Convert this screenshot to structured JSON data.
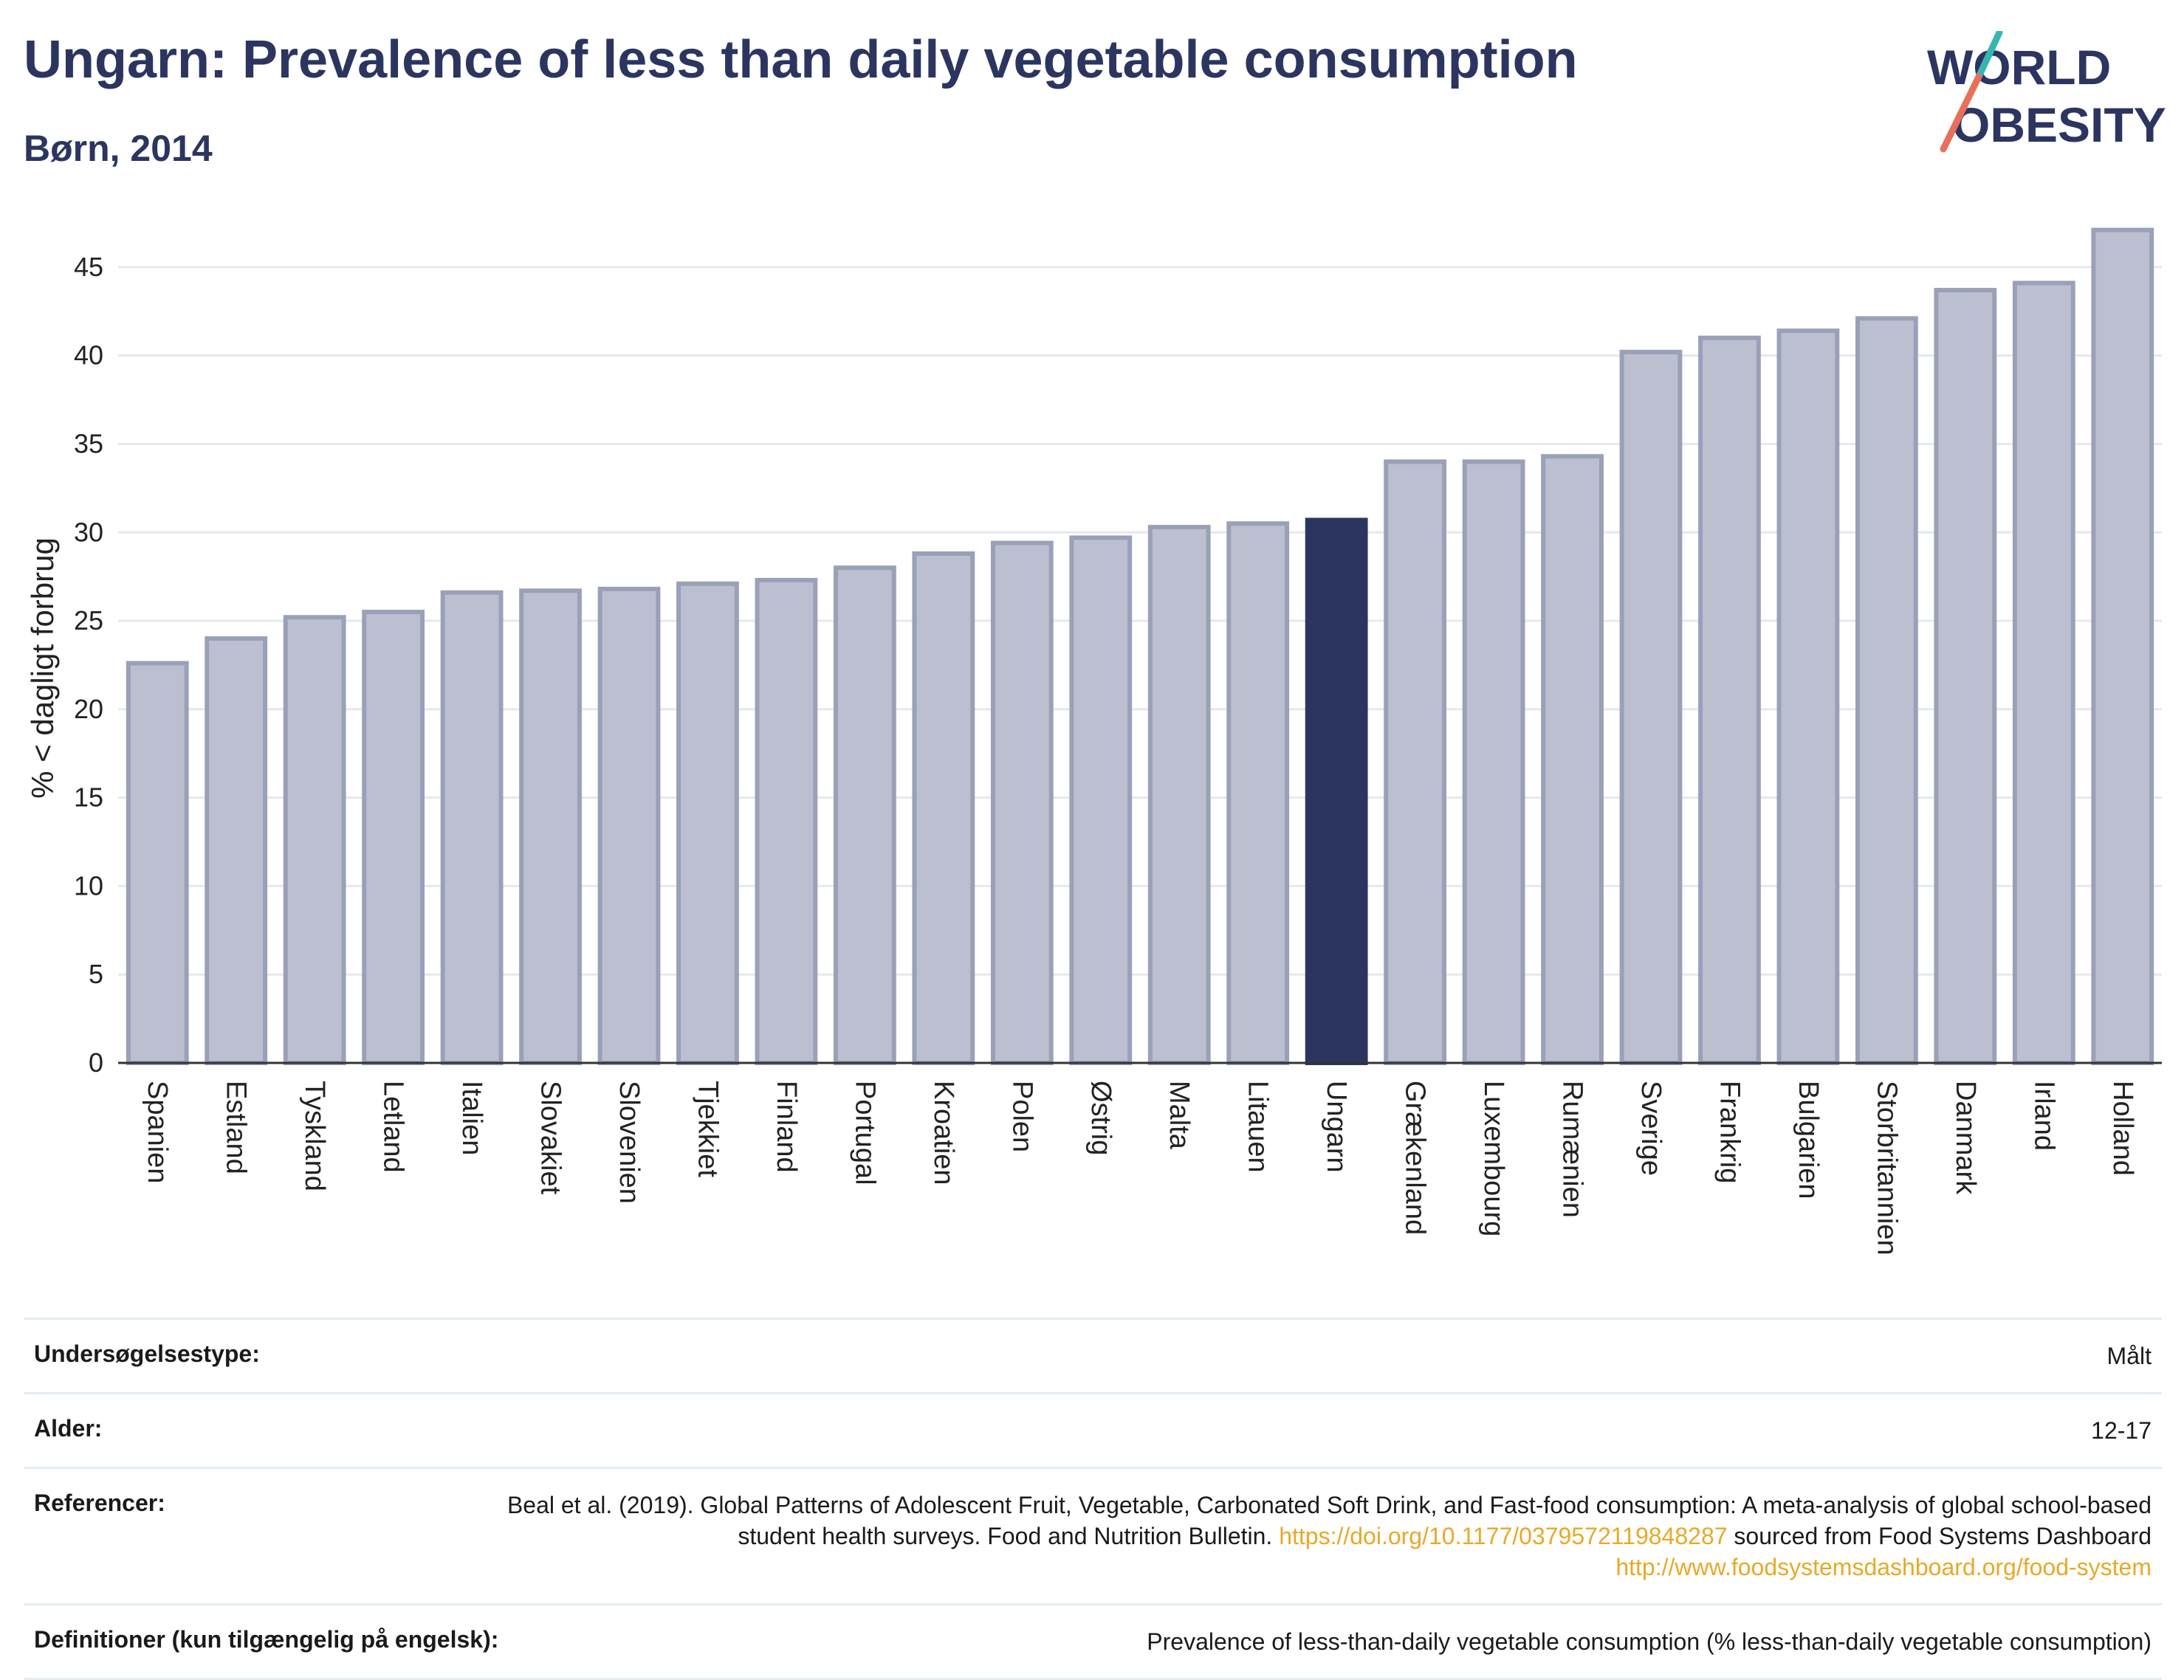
{
  "header": {
    "title": "Ungarn: Prevalence of less than daily vegetable consumption",
    "subtitle": "Børn, 2014"
  },
  "logo": {
    "line1": "WORLD",
    "line2": "OBESITY",
    "colors": {
      "text": "#2b3560",
      "slash_teal": "#37b6b0",
      "slash_coral": "#e8705a"
    }
  },
  "chart_data": {
    "type": "bar",
    "ylabel": "% < dagligt forbrug",
    "xlabel": "",
    "ylim": [
      0,
      48
    ],
    "yticks": [
      0,
      5,
      10,
      15,
      20,
      25,
      30,
      35,
      40,
      45
    ],
    "grid": true,
    "highlight": "Ungarn",
    "colors": {
      "bar": "#bcbfcf",
      "bar_edge": "#9aa0b8",
      "highlight": "#2b3560",
      "grid": "#e6e8ef"
    },
    "categories": [
      "Spanien",
      "Estland",
      "Tyskland",
      "Letland",
      "Italien",
      "Slovakiet",
      "Slovenien",
      "Tjekkiet",
      "Finland",
      "Portugal",
      "Kroatien",
      "Polen",
      "Østrig",
      "Malta",
      "Litauen",
      "Ungarn",
      "Grækenland",
      "Luxembourg",
      "Rumænien",
      "Sverige",
      "Frankrig",
      "Bulgarien",
      "Storbritannien",
      "Danmark",
      "Irland",
      "Holland"
    ],
    "values": [
      22.6,
      24.0,
      25.2,
      25.5,
      26.6,
      26.7,
      26.8,
      27.1,
      27.3,
      28.0,
      28.8,
      29.4,
      29.7,
      30.3,
      30.5,
      30.7,
      34.0,
      34.0,
      34.3,
      40.2,
      41.0,
      41.4,
      42.1,
      43.7,
      44.1,
      47.1
    ]
  },
  "info": {
    "survey_type": {
      "label": "Undersøgelsestype:",
      "value": "Målt"
    },
    "age": {
      "label": "Alder:",
      "value": "12-17"
    },
    "references": {
      "label": "Referencer:",
      "text1": "Beal et al. (2019). Global Patterns of Adolescent Fruit, Vegetable, Carbonated Soft Drink, and Fast-food consumption: A meta-analysis of global school-based student health surveys. Food and Nutrition Bulletin. ",
      "link1": "https://doi.org/10.1177/0379572119848287",
      "text2": " sourced from Food Systems Dashboard ",
      "link2": "http://www.foodsystemsdashboard.org/food-system"
    },
    "definitions": {
      "label": "Definitioner (kun tilgængelig på engelsk):",
      "value": "Prevalence of less-than-daily vegetable consumption (% less-than-daily vegetable consumption)"
    }
  }
}
